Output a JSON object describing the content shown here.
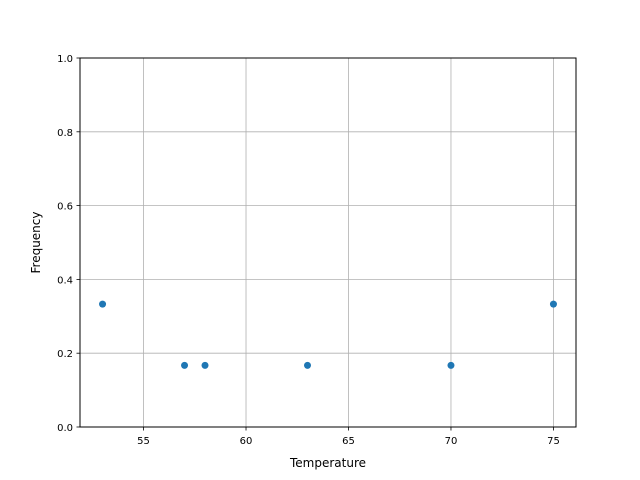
{
  "chart_data": {
    "type": "scatter",
    "title": "",
    "xlabel": "Temperature",
    "ylabel": "Frequency",
    "xlim": [
      51.9,
      76.1
    ],
    "ylim": [
      0,
      1.0
    ],
    "xticks": [
      55,
      60,
      65,
      70,
      75
    ],
    "xtick_labels": [
      "55",
      "60",
      "65",
      "70",
      "75"
    ],
    "yticks": [
      0,
      0.2,
      0.4,
      0.6,
      0.8,
      1.0
    ],
    "ytick_labels": [
      "0.0",
      "0.2",
      "0.4",
      "0.6",
      "0.8",
      "1.0"
    ],
    "grid": true,
    "x": [
      53,
      57,
      58,
      63,
      70,
      75
    ],
    "y": [
      0.333,
      0.167,
      0.167,
      0.167,
      0.167,
      0.333
    ],
    "color": "#1f77b4"
  }
}
